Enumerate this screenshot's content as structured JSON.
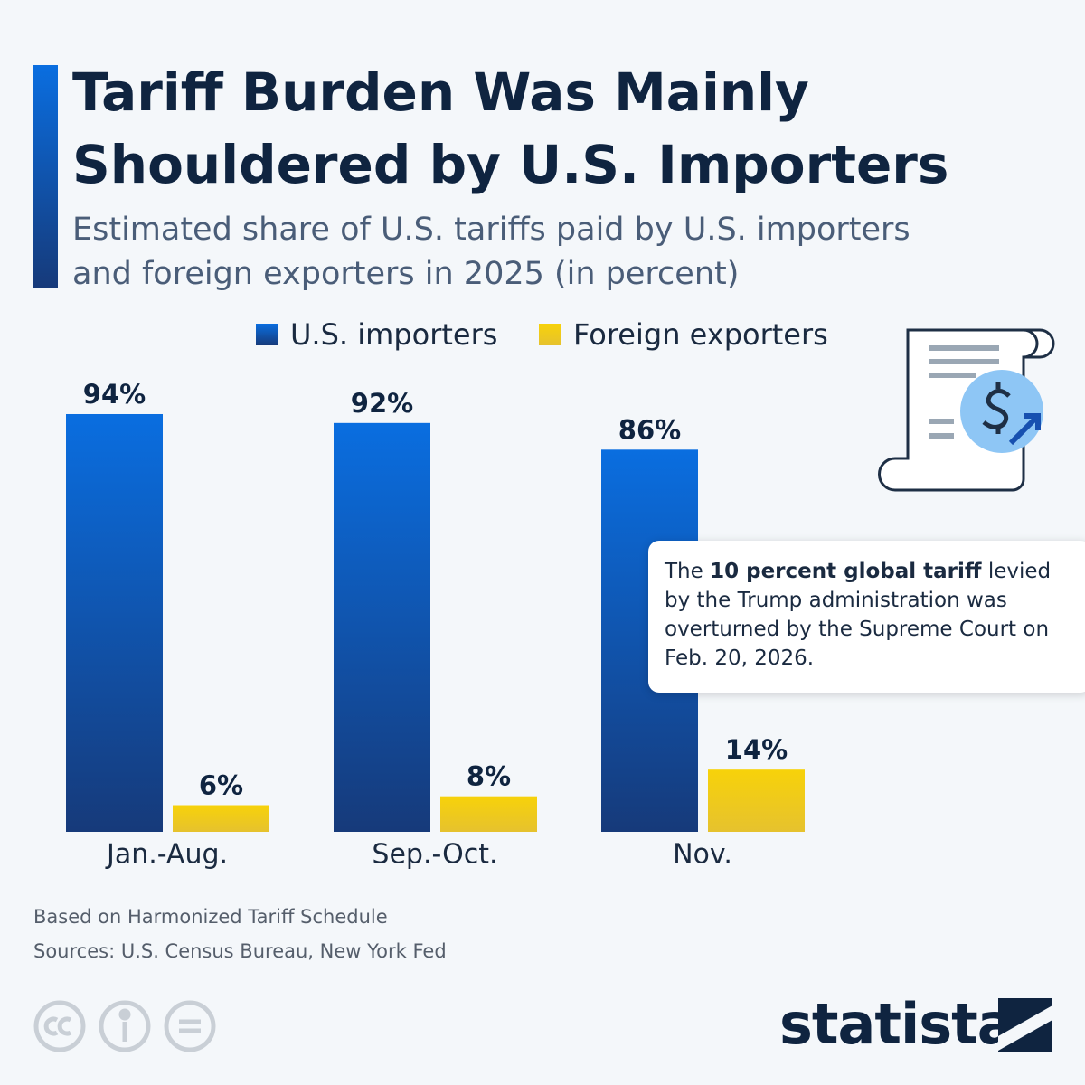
{
  "chart_data": {
    "type": "bar",
    "title": "Tariff Burden Was Mainly Shouldered by U.S. Importers",
    "subtitle": "Estimated share of U.S. tariffs paid by U.S. importers and foreign exporters in 2025 (in percent)",
    "categories": [
      "Jan.-Aug.",
      "Sep.-Oct.",
      "Nov."
    ],
    "series": [
      {
        "name": "U.S. importers",
        "color": "#0a6ee0",
        "values": [
          94,
          92,
          86
        ],
        "value_labels": [
          "94%",
          "92%",
          "86%"
        ]
      },
      {
        "name": "Foreign exporters",
        "color": "#f7d20a",
        "values": [
          6,
          8,
          14
        ],
        "value_labels": [
          "6%",
          "8%",
          "14%"
        ]
      }
    ],
    "annotation": [
      "The ",
      "10 percent global tariff",
      " levied by the Trump administration was overturned by the Supreme Court on Feb. 20, 2026."
    ],
    "note": "Based on Harmonized Tariff Schedule",
    "source": "Sources: U.S. Census Bureau, New York Fed",
    "brand": "statista"
  }
}
